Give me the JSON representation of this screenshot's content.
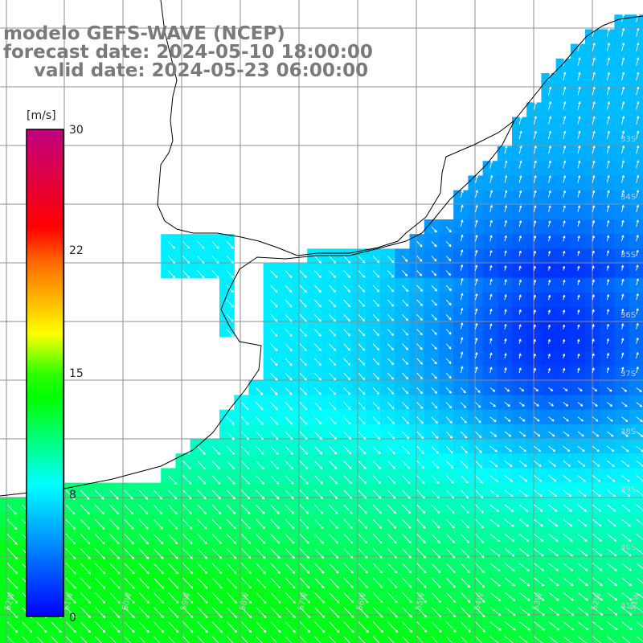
{
  "header": {
    "line1": "modelo GEFS-WAVE (NCEP)",
    "line2": "forecast date: 2024-05-10 18:00:00",
    "line3": "valid date: 2024-05-23 06:00:00"
  },
  "colorbar": {
    "unit": "[m/s]",
    "ticks": [
      30,
      22,
      15,
      8,
      0
    ],
    "stops": [
      "#0000ff",
      "#00ffff",
      "#00ff00",
      "#ffff00",
      "#ff0000",
      "#c00080"
    ]
  },
  "map": {
    "lat_labels": [
      "33S",
      "34S",
      "35S",
      "36S",
      "37S",
      "38S",
      "39S",
      "40S",
      "41S"
    ],
    "lon_labels": [
      "62W",
      "61W",
      "60W",
      "59W",
      "58W",
      "57W",
      "56W",
      "55W",
      "54W",
      "53W",
      "52W",
      "51W"
    ],
    "land_color": "#ffffff",
    "coast_color": "#000000",
    "grid_color": "#8c8c8c",
    "arrow_color": "#ffffff"
  }
}
